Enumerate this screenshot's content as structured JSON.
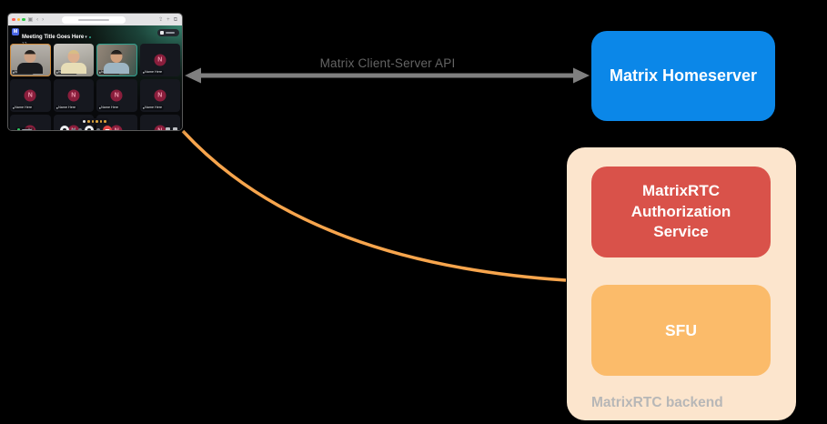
{
  "diagram": {
    "api_arrow": {
      "label": "Matrix Client-Server API",
      "color": "#7f7f7f",
      "label_color": "#646464"
    },
    "homeserver_box": {
      "label": "Matrix Homeserver",
      "bg": "#0b87e8",
      "text_color": "#ffffff"
    },
    "backend_group": {
      "label": "MatrixRTC backend",
      "bg": "#fce5cd",
      "label_color": "#b7b7b7",
      "auth_box": {
        "label": "MatrixRTC Authorization Service",
        "bg": "#d9524a",
        "text_color": "#ffffff"
      },
      "sfu_box": {
        "label": "SFU",
        "bg": "#fbbb6a",
        "text_color": "#ffffff"
      }
    },
    "rtc_link": {
      "color": "#f7a54d"
    }
  },
  "app_window": {
    "browser": {
      "bar_bg": "#e3e3e5",
      "traffic_lights": [
        "#ff5f57",
        "#febc2e",
        "#28c840"
      ]
    },
    "call_header": {
      "avatar_letter": "M",
      "avatar_bg": "#4966e3",
      "title": "Meeting Title Goes Here",
      "participant_count": "12"
    },
    "avatar": {
      "circle": "#8a1e3c",
      "letter_color": "#ef9ab0"
    },
    "participants": [
      {
        "kind": "video",
        "person": "person-1",
        "label": "Name Here",
        "letter": "",
        "border": "#cf8a3a"
      },
      {
        "kind": "video",
        "person": "person-2",
        "label": "Name Here",
        "letter": "",
        "border": ""
      },
      {
        "kind": "video",
        "person": "person-3",
        "label": "Name Here",
        "letter": "",
        "border": "#2fa08e"
      },
      {
        "kind": "avatar",
        "person": "",
        "label": "Name Here",
        "letter": "N",
        "border": ""
      },
      {
        "kind": "avatar",
        "person": "",
        "label": "Name Here",
        "letter": "N",
        "border": ""
      },
      {
        "kind": "avatar",
        "person": "",
        "label": "Name Here",
        "letter": "N",
        "border": ""
      },
      {
        "kind": "avatar",
        "person": "",
        "label": "Name Here",
        "letter": "N",
        "border": ""
      },
      {
        "kind": "avatar",
        "person": "",
        "label": "Name Here",
        "letter": "N",
        "border": ""
      },
      {
        "kind": "avatar",
        "person": "",
        "label": "Name Here",
        "letter": "N",
        "border": ""
      },
      {
        "kind": "avatar",
        "person": "",
        "label": "Name Here",
        "letter": "N",
        "border": ""
      },
      {
        "kind": "avatar",
        "person": "",
        "label": "Name Here",
        "letter": "N",
        "border": ""
      },
      {
        "kind": "avatar",
        "person": "",
        "label": "Name Here",
        "letter": "N",
        "border": ""
      }
    ],
    "controls": {
      "hangup_color": "#e04545"
    }
  }
}
